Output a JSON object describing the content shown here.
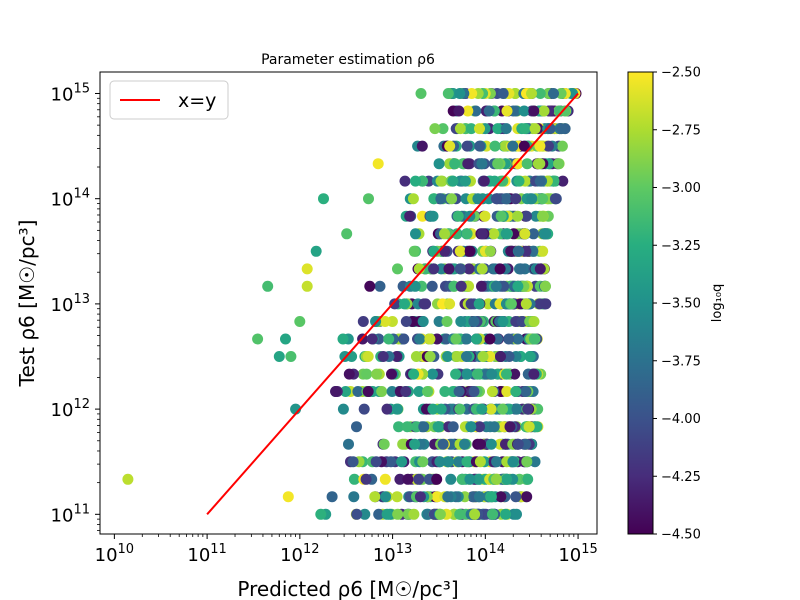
{
  "chart_data": {
    "type": "scatter",
    "title": "Parameter estimation ρ6",
    "xlabel": "Predicted ρ6 [M☉/pc³]",
    "ylabel": "Test ρ6 [M☉/pc³]",
    "xscale": "log",
    "yscale": "log",
    "xlim": [
      7000000000.0,
      1600000000000000.0
    ],
    "ylim": [
      65000000000.0,
      1600000000000000.0
    ],
    "x_ticks": [
      10000000000.0,
      100000000000.0,
      1000000000000.0,
      10000000000000.0,
      100000000000000.0,
      1000000000000000.0
    ],
    "x_tick_labels": [
      {
        "base": "10",
        "exp": "10"
      },
      {
        "base": "10",
        "exp": "11"
      },
      {
        "base": "10",
        "exp": "12"
      },
      {
        "base": "10",
        "exp": "13"
      },
      {
        "base": "10",
        "exp": "14"
      },
      {
        "base": "10",
        "exp": "15"
      }
    ],
    "y_ticks": [
      100000000000.0,
      1000000000000.0,
      10000000000000.0,
      100000000000000.0,
      1000000000000000.0
    ],
    "y_tick_labels": [
      {
        "base": "10",
        "exp": "11"
      },
      {
        "base": "10",
        "exp": "12"
      },
      {
        "base": "10",
        "exp": "13"
      },
      {
        "base": "10",
        "exp": "14"
      },
      {
        "base": "10",
        "exp": "15"
      }
    ],
    "legend": {
      "location": "upper-left",
      "entries": [
        {
          "label": "x=y",
          "color": "#ff0000"
        }
      ]
    },
    "reference_line": {
      "label": "x=y",
      "x": [
        100000000000.0,
        1000000000000000.0
      ],
      "y": [
        100000000000.0,
        1000000000000000.0
      ],
      "color": "#ff0000"
    },
    "colorbar": {
      "label": "log₁₀q",
      "range": [
        -4.5,
        -2.5
      ],
      "ticks": [
        -2.5,
        -2.75,
        -3.0,
        -3.25,
        -3.5,
        -3.75,
        -4.0,
        -4.25,
        -4.5
      ],
      "tick_labels": [
        "−2.50",
        "−2.75",
        "−3.00",
        "−3.25",
        "−3.50",
        "−3.75",
        "−4.00",
        "−4.25",
        "−4.50"
      ],
      "colormap": "viridis"
    },
    "series": [
      {
        "y_levels": [
          100000000000.0,
          147000000000.0,
          215000000000.0,
          316000000000.0,
          464000000000.0,
          681000000000.0,
          1000000000000.0,
          1470000000000.0,
          2150000000000.0,
          3160000000000.0,
          4640000000000.0,
          6810000000000.0,
          10000000000000.0,
          14700000000000.0,
          21500000000000.0,
          31600000000000.0,
          46400000000000.0,
          68100000000000.0,
          100000000000000.0,
          147000000000000.0,
          215000000000000.0,
          316000000000000.0,
          464000000000000.0,
          681000000000000.0,
          1000000000000000.0
        ],
        "x_spans": [
          [
            1000000000000.0,
            220000000000000.0
          ],
          [
            1500000000000.0,
            300000000000000.0
          ],
          [
            2000000000000.0,
            300000000000000.0
          ],
          [
            2200000000000.0,
            350000000000000.0
          ],
          [
            2500000000000.0,
            350000000000000.0
          ],
          [
            2800000000000.0,
            380000000000000.0
          ],
          [
            2500000000000.0,
            400000000000000.0
          ],
          [
            1500000000000.0,
            350000000000000.0
          ],
          [
            2000000000000.0,
            400000000000000.0
          ],
          [
            2500000000000.0,
            400000000000000.0
          ],
          [
            1500000000000.0,
            400000000000000.0
          ],
          [
            3000000000000.0,
            400000000000000.0
          ],
          [
            3000000000000.0,
            450000000000000.0
          ],
          [
            4500000000000.0,
            450000000000000.0
          ],
          [
            5000000000000.0,
            450000000000000.0
          ],
          [
            7000000000000.0,
            450000000000000.0
          ],
          [
            10000000000000.0,
            500000000000000.0
          ],
          [
            10000000000000.0,
            500000000000000.0
          ],
          [
            10000000000000.0,
            600000000000000.0
          ],
          [
            12000000000000.0,
            700000000000000.0
          ],
          [
            15000000000000.0,
            650000000000000.0
          ],
          [
            18000000000000.0,
            700000000000000.0
          ],
          [
            20000000000000.0,
            800000000000000.0
          ],
          [
            20000000000000.0,
            800000000000000.0
          ],
          [
            15000000000000.0,
            1000000000000000.0
          ]
        ],
        "isolated_points": [
          {
            "x": 14000000000.0,
            "y": 215000000000.0
          },
          {
            "x": 450000000000.0,
            "y": 14700000000000.0
          },
          {
            "x": 350000000000.0,
            "y": 4640000000000.0
          },
          {
            "x": 600000000000.0,
            "y": 3160000000000.0
          },
          {
            "x": 700000000000.0,
            "y": 4640000000000.0
          },
          {
            "x": 750000000000.0,
            "y": 147000000000.0
          },
          {
            "x": 800000000000.0,
            "y": 3160000000000.0
          },
          {
            "x": 900000000000.0,
            "y": 1000000000000.0
          },
          {
            "x": 1000000000000.0,
            "y": 6810000000000.0
          },
          {
            "x": 1200000000000.0,
            "y": 14700000000000.0
          },
          {
            "x": 1200000000000.0,
            "y": 21500000000000.0
          },
          {
            "x": 1800000000000.0,
            "y": 100000000000000.0
          },
          {
            "x": 1500000000000.0,
            "y": 31600000000000.0
          },
          {
            "x": 3200000000000.0,
            "y": 46400000000000.0
          },
          {
            "x": 5500000000000.0,
            "y": 100000000000000.0
          },
          {
            "x": 7000000000000.0,
            "y": 215000000000000.0
          }
        ]
      }
    ]
  }
}
